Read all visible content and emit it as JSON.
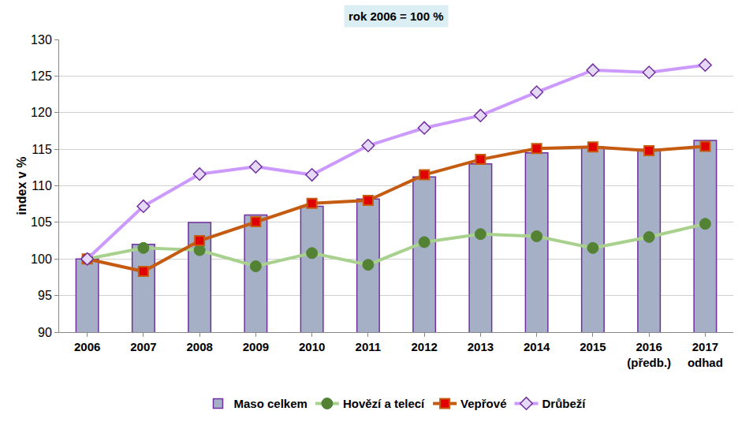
{
  "chart_data": {
    "type": "bar",
    "title": "rok 2006 = 100 %",
    "y_label": "index v %",
    "categories": [
      "2006",
      "2007",
      "2008",
      "2009",
      "2010",
      "2011",
      "2012",
      "2013",
      "2014",
      "2015",
      "2016\n(předb.)",
      "2017\nodhad"
    ],
    "series": [
      {
        "name": "Maso celkem",
        "type": "bar",
        "color": "#a5afc6",
        "values": [
          100,
          102,
          105,
          106,
          107.2,
          108.2,
          111.2,
          113,
          114.5,
          115.3,
          115,
          116.2
        ]
      },
      {
        "name": "Hovězí a telecí",
        "type": "line",
        "color": "#a9d18e",
        "marker": "circle",
        "values": [
          100,
          101.5,
          101.2,
          99,
          100.8,
          99.2,
          102.3,
          103.4,
          103.1,
          101.5,
          103,
          104.8
        ]
      },
      {
        "name": "Vepřové",
        "type": "line",
        "color": "#c55a11",
        "marker": "square",
        "values": [
          100,
          98.3,
          102.5,
          105.1,
          107.6,
          108,
          111.5,
          113.6,
          115.1,
          115.3,
          114.8,
          115.4
        ]
      },
      {
        "name": "Drůbeží",
        "type": "line",
        "color": "#cc99ff",
        "marker": "diamond",
        "values": [
          100,
          107.2,
          111.6,
          112.6,
          111.5,
          115.5,
          117.9,
          119.6,
          122.8,
          125.8,
          125.5,
          126.5
        ]
      }
    ],
    "ylim": [
      90,
      130
    ],
    "yticks": [
      90,
      95,
      100,
      105,
      110,
      115,
      120,
      125,
      130
    ],
    "grid": true,
    "legend": "bottom"
  }
}
